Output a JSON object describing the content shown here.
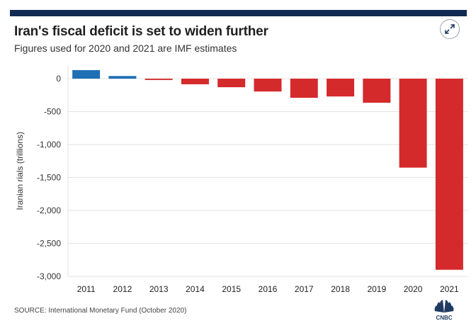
{
  "header": {
    "title": "Iran's fiscal deficit is set to widen further",
    "subtitle": "Figures used for 2020 and 2021 are IMF estimates"
  },
  "controls": {
    "expand_icon": "expand-arrows-icon"
  },
  "source": "SOURCE: International Monetary Fund (October 2020)",
  "brand": {
    "name": "CNBC",
    "logo_icon": "peacock-icon"
  },
  "colors": {
    "positive": "#1f6fb5",
    "negative": "#d42a2c",
    "top_bar": "#102a52"
  },
  "chart_data": {
    "type": "bar",
    "categories": [
      "2011",
      "2012",
      "2013",
      "2014",
      "2015",
      "2016",
      "2017",
      "2018",
      "2019",
      "2020",
      "2021"
    ],
    "values": [
      130,
      40,
      -20,
      -85,
      -130,
      -195,
      -290,
      -270,
      -365,
      -1350,
      -2900
    ],
    "title": "Iran's fiscal deficit is set to widen further",
    "subtitle": "Figures used for 2020 and 2021 are IMF estimates",
    "xlabel": "",
    "ylabel": "Iranian rials (trillions)",
    "ylim": [
      -3000,
      200
    ],
    "yticks": [
      0,
      -500,
      -1000,
      -1500,
      -2000,
      -2500,
      -3000
    ],
    "ytick_labels": [
      "0",
      "-500",
      "-1,000",
      "-1,500",
      "-2,000",
      "-2,500",
      "-3,000"
    ],
    "grid": true,
    "legend": "none"
  }
}
